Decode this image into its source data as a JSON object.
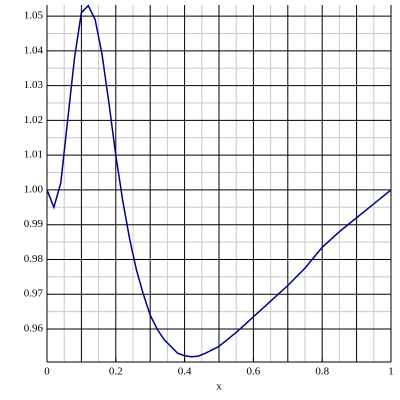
{
  "chart_data": {
    "type": "line",
    "xlabel": "x",
    "x": [
      0,
      0.02,
      0.04,
      0.06,
      0.08,
      0.1,
      0.12,
      0.14,
      0.16,
      0.18,
      0.2,
      0.22,
      0.24,
      0.26,
      0.28,
      0.3,
      0.32,
      0.34,
      0.36,
      0.38,
      0.4,
      0.42,
      0.44,
      0.46,
      0.5,
      0.55,
      0.6,
      0.65,
      0.7,
      0.75,
      0.8,
      0.85,
      0.9,
      0.95,
      1
    ],
    "series": [
      {
        "color": "#00008b",
        "values": [
          1.0,
          0.995,
          1.002,
          1.02,
          1.038,
          1.051,
          1.053,
          1.049,
          1.039,
          1.025,
          1.01,
          0.997,
          0.986,
          0.977,
          0.97,
          0.964,
          0.96,
          0.957,
          0.955,
          0.953,
          0.9523,
          0.952,
          0.9522,
          0.953,
          0.955,
          0.959,
          0.9635,
          0.968,
          0.9725,
          0.9775,
          0.9835,
          0.988,
          0.992,
          0.996,
          1.0
        ]
      }
    ],
    "xlim": [
      0,
      1
    ],
    "ylim": [
      0.9505,
      1.0532
    ],
    "xticks": [
      0,
      0.2,
      0.4,
      0.6,
      0.8,
      1
    ],
    "xgrid": [
      0,
      0.1,
      0.2,
      0.3,
      0.4,
      0.5,
      0.6,
      0.7,
      0.8,
      0.9,
      1
    ],
    "yticks": [
      0.96,
      0.97,
      0.98,
      0.99,
      {
        "value": 1,
        "label": "1.00"
      },
      1.01,
      1.02,
      1.03,
      1.04,
      1.05
    ],
    "grid": true
  }
}
